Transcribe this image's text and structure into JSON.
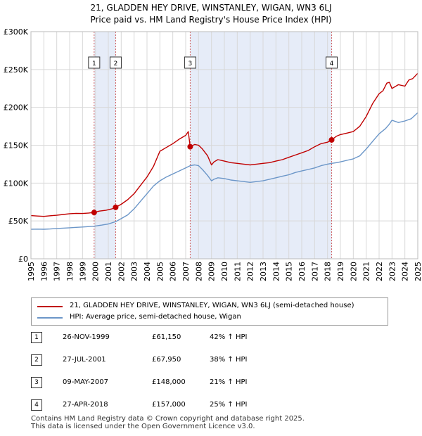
{
  "header": {
    "title_line1": "21, GLADDEN HEY DRIVE, WINSTANLEY, WIGAN, WN3 6LJ",
    "title_line2": "Price paid vs. HM Land Registry's House Price Index (HPI)"
  },
  "colors": {
    "property": "#c00000",
    "hpi": "#6b96c8",
    "shade": "#e6ecf8",
    "vline": "#d06060"
  },
  "legend": {
    "property_label": "21, GLADDEN HEY DRIVE, WINSTANLEY, WIGAN, WN3 6LJ (semi-detached house)",
    "hpi_label": "HPI: Average price, semi-detached house, Wigan"
  },
  "sales": [
    {
      "num": "1",
      "date": "26-NOV-1999",
      "price": "£61,150",
      "hpi": "42% ↑ HPI"
    },
    {
      "num": "2",
      "date": "27-JUL-2001",
      "price": "£67,950",
      "hpi": "38% ↑ HPI"
    },
    {
      "num": "3",
      "date": "09-MAY-2007",
      "price": "£148,000",
      "hpi": "21% ↑ HPI"
    },
    {
      "num": "4",
      "date": "27-APR-2018",
      "price": "£157,000",
      "hpi": "25% ↑ HPI"
    }
  ],
  "footer": {
    "line1": "Contains HM Land Registry data © Crown copyright and database right 2025.",
    "line2": "This data is licensed under the Open Government Licence v3.0."
  },
  "chart_data": {
    "type": "line",
    "title": "21, GLADDEN HEY DRIVE, WINSTANLEY, WIGAN, WN3 6LJ",
    "subtitle": "Price paid vs. HM Land Registry's House Price Index (HPI)",
    "xlabel": "",
    "ylabel": "",
    "xlim": [
      1995,
      2025
    ],
    "ylim": [
      0,
      300000
    ],
    "y_ticks": [
      0,
      50000,
      100000,
      150000,
      200000,
      250000,
      300000
    ],
    "y_tick_labels": [
      "£0",
      "£50K",
      "£100K",
      "£150K",
      "£200K",
      "£250K",
      "£300K"
    ],
    "x_ticks": [
      1995,
      1996,
      1997,
      1998,
      1999,
      2000,
      2001,
      2002,
      2003,
      2004,
      2005,
      2006,
      2007,
      2008,
      2009,
      2010,
      2011,
      2012,
      2013,
      2014,
      2015,
      2016,
      2017,
      2018,
      2019,
      2020,
      2021,
      2022,
      2023,
      2024,
      2025
    ],
    "x_tick_labels": [
      "1995",
      "1996",
      "1997",
      "1998",
      "1999",
      "2000",
      "2001",
      "2002",
      "2003",
      "2004",
      "2005",
      "2006",
      "2007",
      "2008",
      "2009",
      "2010",
      "2011",
      "2012",
      "2013",
      "2014",
      "2015",
      "2016",
      "2017",
      "2018",
      "2019",
      "2020",
      "2021",
      "2022",
      "2023",
      "2024",
      "2025"
    ],
    "grid": true,
    "shaded_ranges": [
      [
        1999.9,
        2001.57
      ],
      [
        2007.35,
        2018.32
      ]
    ],
    "series": [
      {
        "name": "21, GLADDEN HEY DRIVE, WINSTANLEY, WIGAN, WN3 6LJ (semi-detached house)",
        "color": "#c00000",
        "x": [
          1995,
          1995.5,
          1996,
          1996.5,
          1997,
          1997.5,
          1998,
          1998.5,
          1999,
          1999.5,
          1999.9,
          2000.3,
          2000.8,
          2001.3,
          2001.57,
          2002,
          2002.5,
          2003,
          2003.5,
          2004,
          2004.5,
          2005,
          2005.5,
          2006,
          2006.5,
          2007,
          2007.2,
          2007.35,
          2007.7,
          2008,
          2008.3,
          2008.7,
          2009,
          2009.2,
          2009.5,
          2010,
          2010.5,
          2011,
          2011.5,
          2012,
          2012.5,
          2013,
          2013.5,
          2014,
          2014.5,
          2015,
          2015.5,
          2016,
          2016.5,
          2017,
          2017.5,
          2018,
          2018.32,
          2018.7,
          2019,
          2019.5,
          2020,
          2020.5,
          2021,
          2021.5,
          2022,
          2022.3,
          2022.6,
          2022.8,
          2023,
          2023.5,
          2024,
          2024.3,
          2024.6,
          2025
        ],
        "y": [
          57000,
          56500,
          56000,
          56800,
          57500,
          58500,
          59500,
          60000,
          59800,
          60500,
          61150,
          63000,
          64000,
          66000,
          67950,
          72000,
          78000,
          86000,
          97000,
          108000,
          122000,
          142000,
          147000,
          152000,
          158000,
          163000,
          168000,
          148000,
          151000,
          150000,
          145000,
          136000,
          124000,
          128000,
          131000,
          129000,
          127000,
          126000,
          125000,
          124000,
          125000,
          126000,
          127000,
          129000,
          131000,
          134000,
          137000,
          140000,
          143000,
          148000,
          152000,
          154000,
          157000,
          162000,
          164000,
          166000,
          168000,
          175000,
          188000,
          205000,
          218000,
          222000,
          232000,
          233000,
          225000,
          230000,
          228000,
          236000,
          238000,
          245000
        ]
      },
      {
        "name": "HPI: Average price, semi-detached house, Wigan",
        "color": "#6b96c8",
        "x": [
          1995,
          1995.5,
          1996,
          1996.5,
          1997,
          1997.5,
          1998,
          1998.5,
          1999,
          1999.5,
          1999.9,
          2000.5,
          2001,
          2001.57,
          2002,
          2002.5,
          2003,
          2003.5,
          2004,
          2004.5,
          2005,
          2005.5,
          2006,
          2006.5,
          2007,
          2007.35,
          2007.7,
          2008,
          2008.3,
          2008.7,
          2009,
          2009.2,
          2009.5,
          2010,
          2010.5,
          2011,
          2011.5,
          2012,
          2012.5,
          2013,
          2013.5,
          2014,
          2014.5,
          2015,
          2015.5,
          2016,
          2016.5,
          2017,
          2017.5,
          2018,
          2018.32,
          2018.7,
          2019,
          2019.5,
          2020,
          2020.5,
          2021,
          2021.5,
          2022,
          2022.5,
          2022.8,
          2023,
          2023.5,
          2024,
          2024.5,
          2025
        ],
        "y": [
          39000,
          39200,
          39000,
          39400,
          40000,
          40500,
          41000,
          41500,
          42000,
          42500,
          43000,
          44500,
          46000,
          49000,
          53000,
          58000,
          66000,
          76000,
          86000,
          96000,
          103000,
          108000,
          112000,
          116000,
          120000,
          123000,
          124000,
          123000,
          118000,
          110000,
          103000,
          105000,
          107000,
          106000,
          104000,
          103000,
          102000,
          101000,
          102000,
          103000,
          105000,
          107000,
          109000,
          111000,
          114000,
          116000,
          118000,
          120000,
          123000,
          125000,
          126000,
          127000,
          128000,
          130000,
          132000,
          136000,
          145000,
          155000,
          165000,
          172000,
          178000,
          183000,
          180000,
          182000,
          185000,
          193000
        ]
      }
    ],
    "sale_markers": [
      {
        "label": "1",
        "x": 1999.9,
        "y": 61150
      },
      {
        "label": "2",
        "x": 2001.57,
        "y": 67950
      },
      {
        "label": "3",
        "x": 2007.35,
        "y": 148000
      },
      {
        "label": "4",
        "x": 2018.32,
        "y": 157000
      }
    ]
  }
}
